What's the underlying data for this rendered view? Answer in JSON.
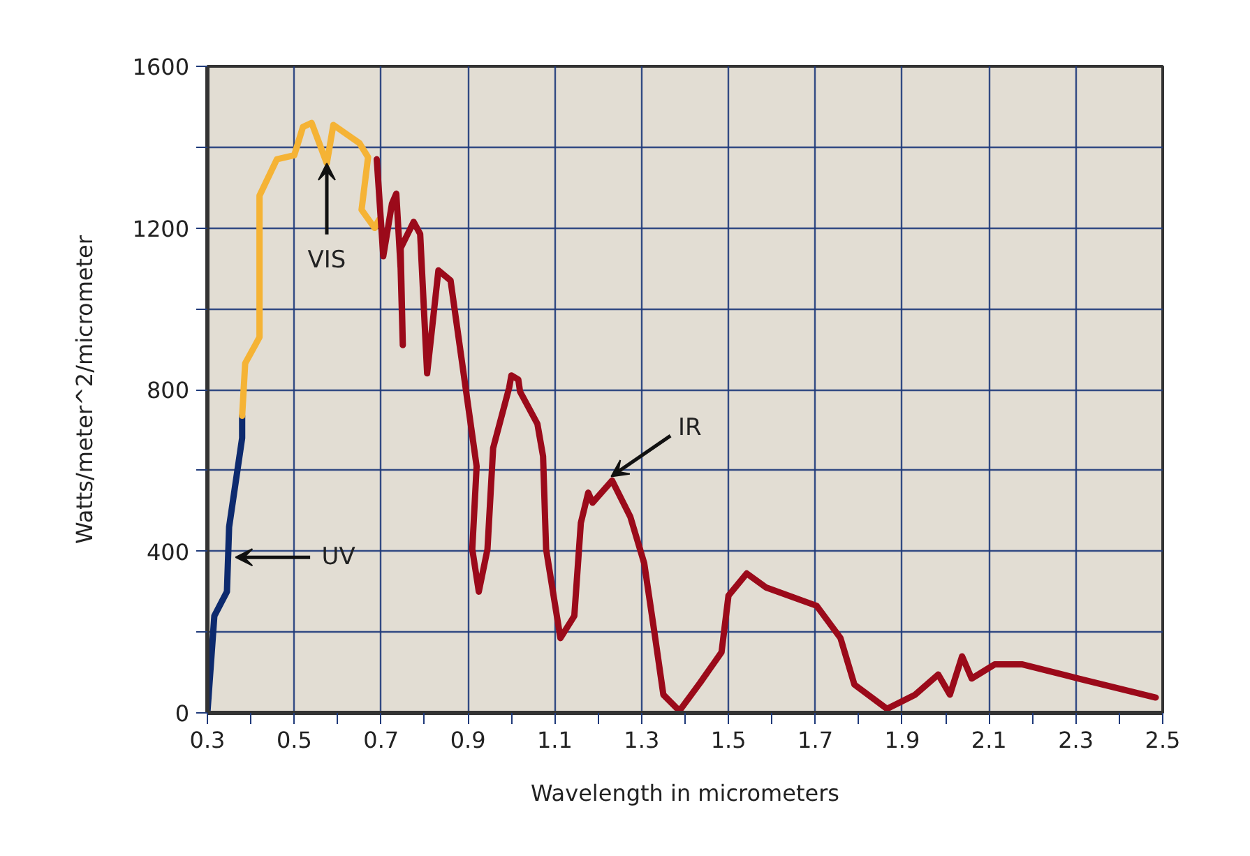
{
  "chart_data": {
    "type": "line",
    "xlabel": "Wavelength in micrometers",
    "ylabel": "Watts/meter^2/micrometer",
    "xlim": [
      0.3,
      2.5
    ],
    "ylim": [
      0,
      1600
    ],
    "xticks": [
      0.3,
      {
        "value": 0.4,
        "label": null
      },
      0.5,
      {
        "value": 0.6,
        "label": null
      },
      0.7,
      {
        "value": 0.8,
        "label": null
      },
      0.9,
      {
        "value": 1.0,
        "label": null
      },
      1.1,
      {
        "value": 1.2,
        "label": null
      },
      1.3,
      {
        "value": 1.4,
        "label": null
      },
      1.5,
      {
        "value": 1.6,
        "label": null
      },
      1.7,
      {
        "value": 1.8,
        "label": null
      },
      1.9,
      {
        "value": 2.0,
        "label": null
      },
      2.1,
      {
        "value": 2.2,
        "label": null
      },
      2.3,
      {
        "value": 2.4,
        "label": null
      },
      2.5
    ],
    "yticks": [
      0,
      {
        "value": 200,
        "label": null
      },
      400,
      {
        "value": 600,
        "label": null
      },
      800,
      {
        "value": 1000,
        "label": null
      },
      1200,
      {
        "value": 1400,
        "label": null
      },
      1600
    ],
    "grid": true,
    "marker": "none",
    "line_style": "solid",
    "series": [
      {
        "color": "#0d2a6e",
        "x": [
          0.3,
          0.316,
          0.345,
          0.35,
          0.38,
          0.38
        ],
        "values": [
          0,
          240,
          300,
          460,
          680,
          735
        ]
      },
      {
        "color": "#f5b335",
        "x": [
          0.38,
          0.387,
          0.41,
          0.42,
          0.42,
          0.46,
          0.5,
          0.52,
          0.54,
          0.575,
          0.59,
          0.65,
          0.67,
          0.655,
          0.685,
          0.695
        ],
        "values": [
          735,
          865,
          910,
          930,
          1280,
          1370,
          1380,
          1450,
          1460,
          1360,
          1455,
          1410,
          1375,
          1245,
          1200,
          1220
        ]
      },
      {
        "color": "#9b0a1a",
        "x": [
          0.69,
          0.705,
          0.725,
          0.735,
          0.745,
          0.75,
          0.745,
          0.775,
          0.79,
          0.806,
          0.832,
          0.86,
          0.92,
          0.91,
          0.925,
          0.945,
          0.958,
          0.995,
          1.0,
          1.016,
          1.02,
          1.06,
          1.073,
          1.08,
          1.113,
          1.145,
          1.16,
          1.177,
          1.187,
          1.232,
          1.274,
          1.306,
          1.33,
          1.35,
          1.387,
          1.435,
          1.484,
          1.5,
          1.542,
          1.587,
          1.703,
          1.758,
          1.79,
          1.865,
          1.93,
          1.983,
          2.01,
          2.038,
          2.06,
          2.113,
          2.177,
          2.306,
          2.484
        ],
        "values": [
          1370,
          1130,
          1260,
          1285,
          1100,
          910,
          1150,
          1215,
          1185,
          840,
          1095,
          1070,
          610,
          405,
          300,
          405,
          655,
          805,
          835,
          825,
          795,
          715,
          635,
          405,
          185,
          240,
          470,
          545,
          520,
          575,
          485,
          370,
          195,
          45,
          5,
          75,
          150,
          290,
          345,
          310,
          265,
          185,
          70,
          10,
          45,
          95,
          45,
          140,
          85,
          120,
          120,
          85,
          38
        ]
      }
    ],
    "annotations": [
      {
        "text": "UV",
        "x": 0.365,
        "y": 385
      },
      {
        "text": "VIS",
        "x": 0.575,
        "y": 1360
      },
      {
        "text": "IR",
        "x": 1.23,
        "y": 585
      }
    ]
  }
}
